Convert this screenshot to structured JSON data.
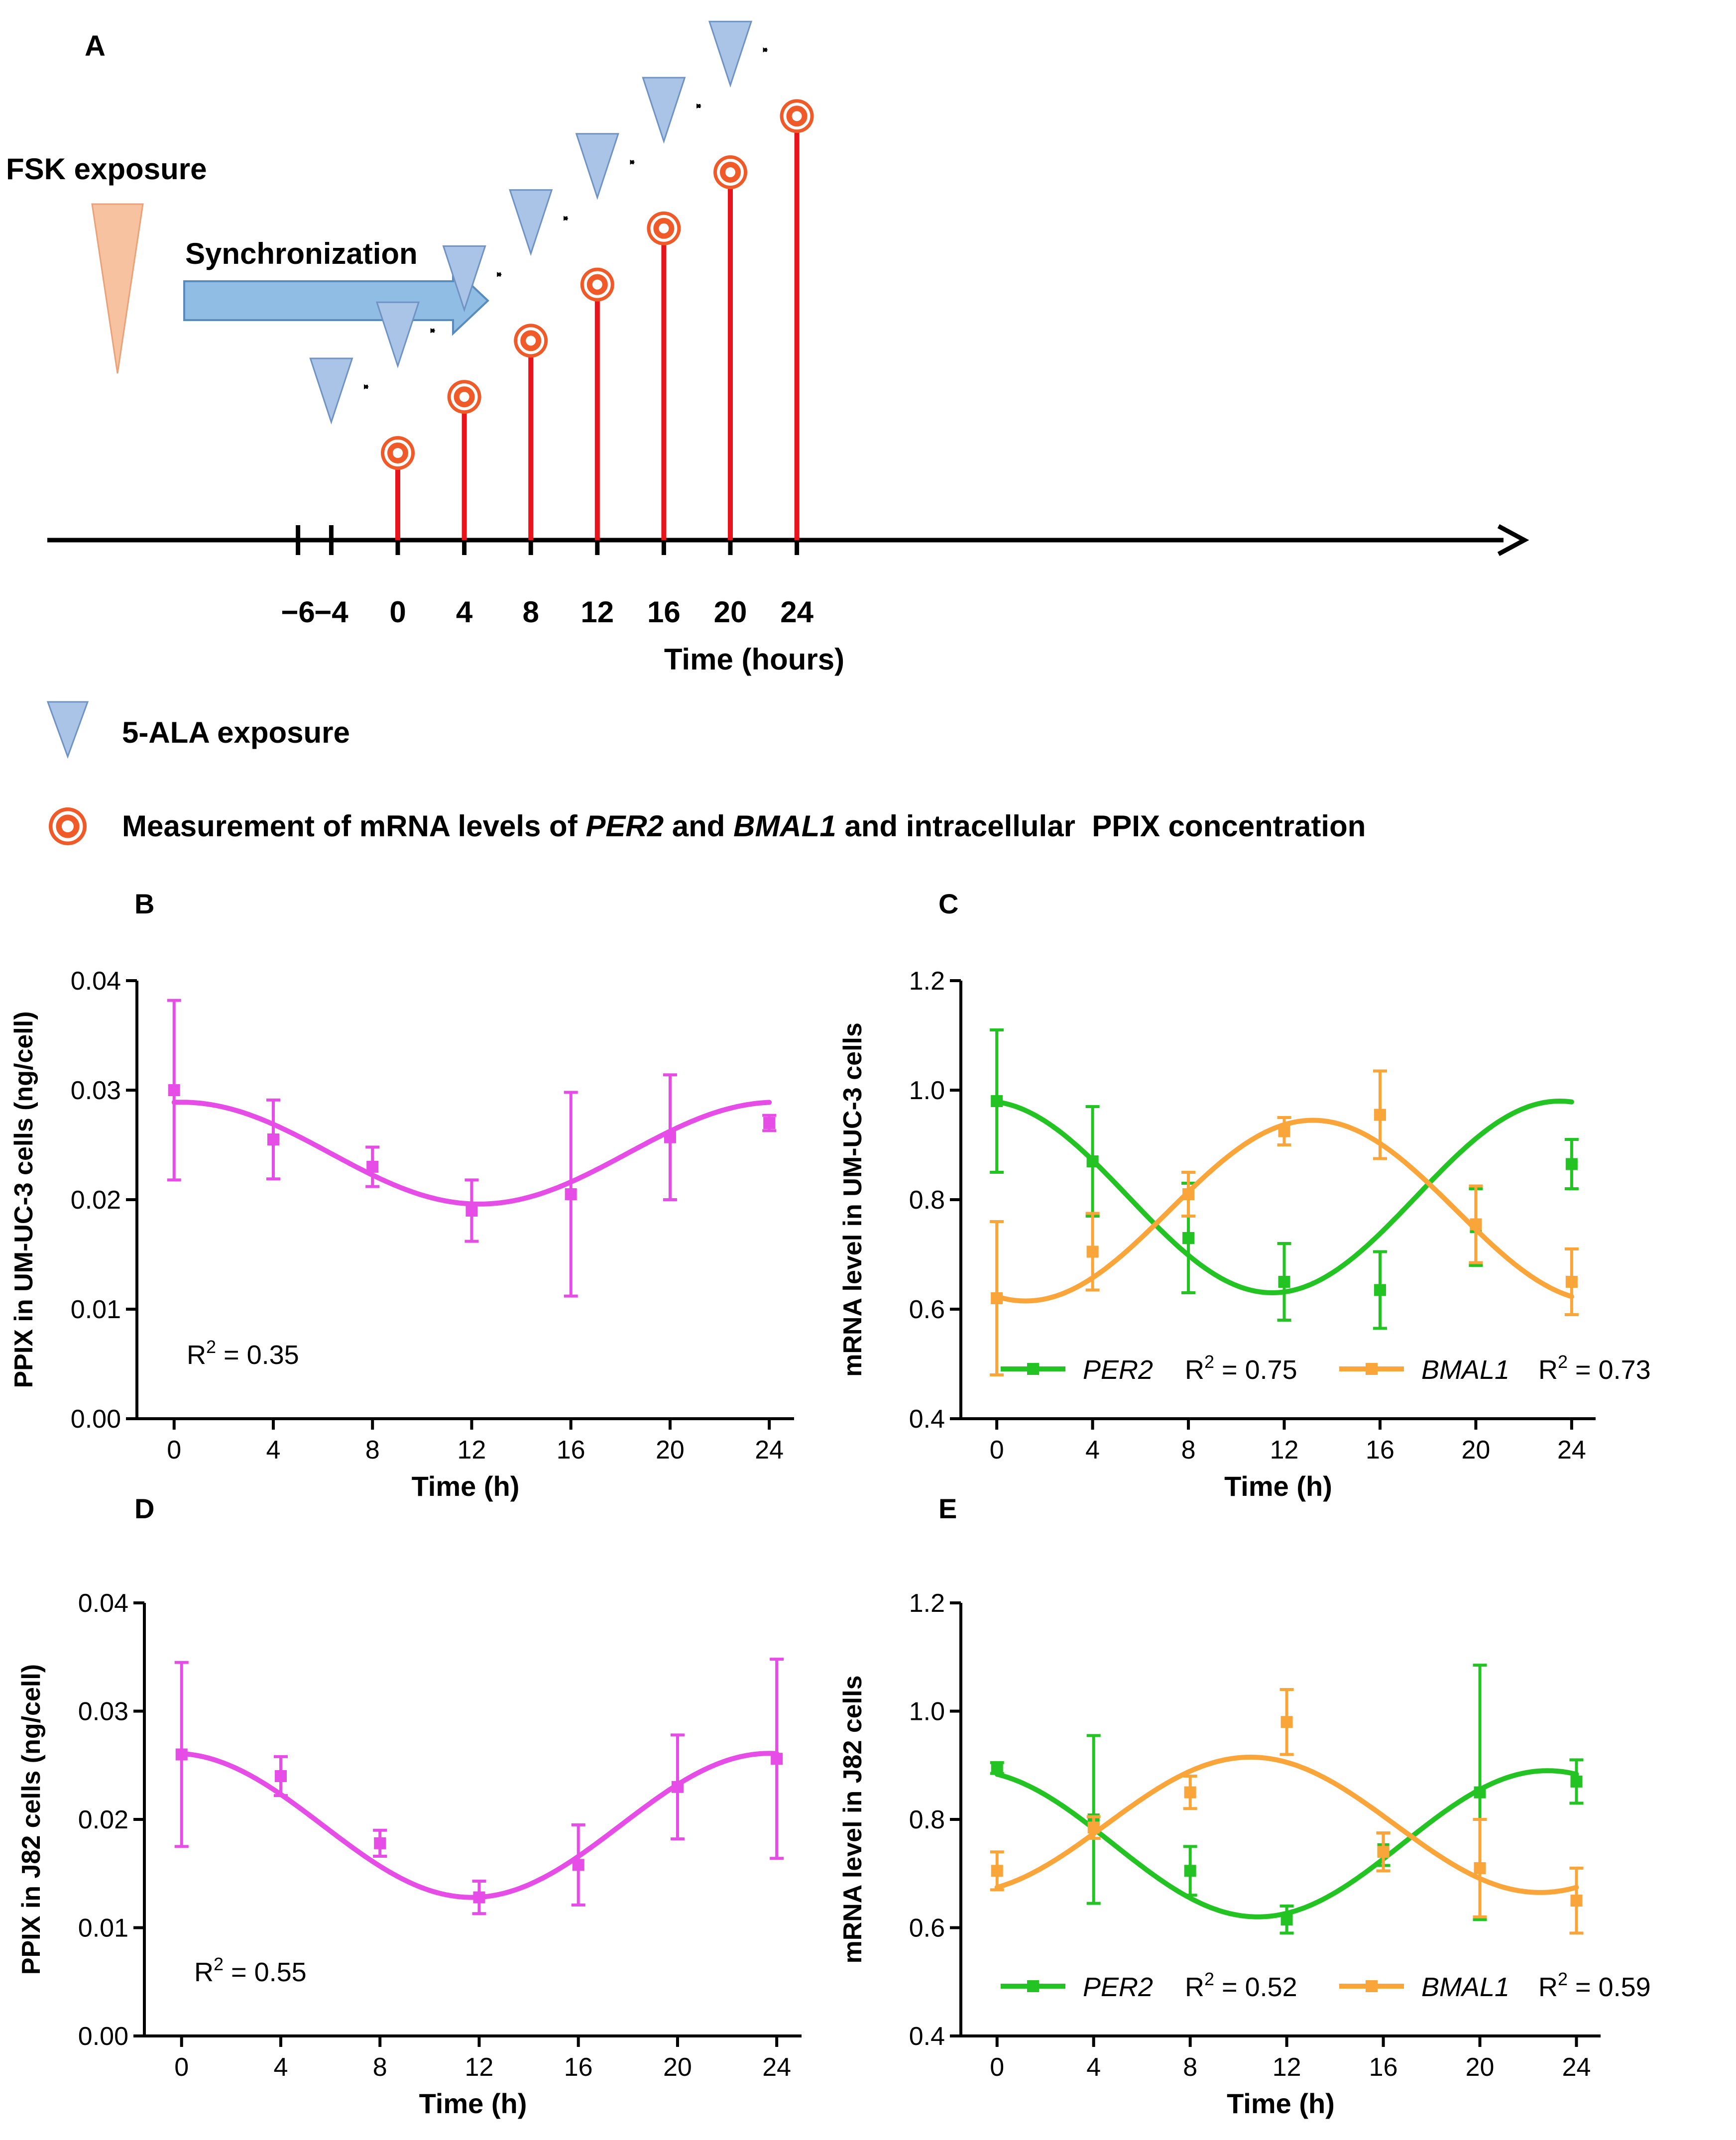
{
  "panel_a": {
    "label": "A",
    "fsk_label": "FSK exposure",
    "sync_label": "Synchronization",
    "axis_title": "Time (hours)",
    "ticks": [
      "−6",
      "−4",
      "0",
      "4",
      "8",
      "12",
      "16",
      "20",
      "24"
    ],
    "tick_values": [
      -6,
      -4,
      0,
      4,
      8,
      12,
      16,
      20,
      24
    ],
    "measure_times": [
      0,
      4,
      8,
      12,
      16,
      20,
      24
    ],
    "ala_times": [
      -4,
      0,
      4,
      8,
      12,
      16,
      20
    ],
    "legend_ala": "5-ALA exposure",
    "legend_measure_parts": [
      "Measurement of mRNA levels of ",
      "PER2",
      " and ",
      "BMAL1",
      " and intracellular  PPIX concentration"
    ],
    "colors": {
      "fsk": "#f7c29f",
      "ala": "#a9c4e6",
      "stem": "#e8131b",
      "marker": "#f05a28",
      "sync": "#8fbde3"
    }
  },
  "chart_data": [
    {
      "panel": "B",
      "type": "line",
      "title": "",
      "xlabel": "Time (h)",
      "ylabel": "PPIX in UM-UC-3 cells (ng/cell)",
      "x": [
        0,
        4,
        8,
        12,
        16,
        20,
        24
      ],
      "xticks": [
        "0",
        "4",
        "8",
        "12",
        "16",
        "20",
        "24"
      ],
      "yticks": [
        "0.00",
        "0.01",
        "0.02",
        "0.03",
        "0.04"
      ],
      "xlim": [
        -1.5,
        25
      ],
      "ylim": [
        0,
        0.04
      ],
      "series": [
        {
          "name": "PPIX",
          "color": "#e64ce6",
          "values": [
            0.03,
            0.0255,
            0.023,
            0.019,
            0.0205,
            0.0257,
            0.027
          ],
          "errors": [
            0.0082,
            0.0036,
            0.0018,
            0.0028,
            0.0093,
            0.0057,
            0.0007
          ],
          "fit": {
            "mean": 0.02425,
            "amp": 0.00465,
            "peak_h": 0.3
          }
        }
      ],
      "annotation": "= 0.35",
      "annotation_prefix": "R",
      "annotation_sup": "2"
    },
    {
      "panel": "C",
      "type": "line",
      "title": "",
      "xlabel": "Time (h)",
      "ylabel": "mRNA level in UM-UC-3 cells",
      "x": [
        0,
        4,
        8,
        12,
        16,
        20,
        24
      ],
      "xticks": [
        "0",
        "4",
        "8",
        "12",
        "16",
        "20",
        "24"
      ],
      "yticks": [
        "0.4",
        "0.6",
        "0.8",
        "1.0",
        "1.2"
      ],
      "xlim": [
        -1.5,
        25
      ],
      "ylim": [
        0.4,
        1.2
      ],
      "series": [
        {
          "name": "PER2",
          "r2": "R² = 0.75",
          "color": "#22c322",
          "values": [
            0.98,
            0.87,
            0.73,
            0.65,
            0.635,
            0.75,
            0.865
          ],
          "errors": [
            0.13,
            0.1,
            0.1,
            0.07,
            0.07,
            0.07,
            0.045
          ],
          "fit": {
            "mean": 0.805,
            "amp": 0.175,
            "peak_h": -0.5
          }
        },
        {
          "name": "BMAL1",
          "r2": "R² = 0.73",
          "color": "#f9a53a",
          "values": [
            0.62,
            0.705,
            0.81,
            0.925,
            0.955,
            0.755,
            0.65
          ],
          "errors": [
            0.14,
            0.07,
            0.04,
            0.025,
            0.08,
            0.07,
            0.06
          ],
          "fit": {
            "mean": 0.78,
            "amp": 0.165,
            "peak_h": 13.2
          }
        }
      ]
    },
    {
      "panel": "D",
      "type": "line",
      "title": "",
      "xlabel": "Time (h)",
      "ylabel": "PPIX in J82 cells (ng/cell)",
      "x": [
        0,
        4,
        8,
        12,
        16,
        20,
        24
      ],
      "xticks": [
        "0",
        "4",
        "8",
        "12",
        "16",
        "20",
        "24"
      ],
      "yticks": [
        "0.00",
        "0.01",
        "0.02",
        "0.03",
        "0.04"
      ],
      "xlim": [
        -1.5,
        25
      ],
      "ylim": [
        0,
        0.04
      ],
      "series": [
        {
          "name": "PPIX",
          "color": "#e64ce6",
          "values": [
            0.026,
            0.024,
            0.0178,
            0.0128,
            0.0158,
            0.023,
            0.0256
          ],
          "errors": [
            0.0085,
            0.0018,
            0.0012,
            0.0015,
            0.0037,
            0.0048,
            0.0092
          ],
          "fit": {
            "mean": 0.01945,
            "amp": 0.00665,
            "peak_h": 23.7
          }
        }
      ],
      "annotation": "= 0.55",
      "annotation_prefix": "R",
      "annotation_sup": "2"
    },
    {
      "panel": "E",
      "type": "line",
      "title": "",
      "xlabel": "Time (h)",
      "ylabel": "mRNA level in J82 cells",
      "x": [
        0,
        4,
        8,
        12,
        16,
        20,
        24
      ],
      "xticks": [
        "0",
        "4",
        "8",
        "12",
        "16",
        "20",
        "24"
      ],
      "yticks": [
        "0.4",
        "0.6",
        "0.8",
        "1.0",
        "1.2"
      ],
      "xlim": [
        -1.5,
        25
      ],
      "ylim": [
        0.4,
        1.2
      ],
      "series": [
        {
          "name": "PER2",
          "r2": "R² = 0.52",
          "color": "#22c322",
          "values": [
            0.895,
            0.8,
            0.705,
            0.615,
            0.745,
            0.85,
            0.87
          ],
          "errors": [
            0.01,
            0.155,
            0.045,
            0.025,
            0.03,
            0.235,
            0.04
          ],
          "fit": {
            "mean": 0.755,
            "amp": 0.135,
            "peak_h": 22.8
          }
        },
        {
          "name": "BMAL1",
          "r2": "R² = 0.59",
          "color": "#f9a53a",
          "values": [
            0.705,
            0.785,
            0.85,
            0.98,
            0.74,
            0.71,
            0.65
          ],
          "errors": [
            0.035,
            0.02,
            0.03,
            0.06,
            0.035,
            0.09,
            0.06
          ],
          "fit": {
            "mean": 0.79,
            "amp": 0.125,
            "peak_h": 10.5
          }
        }
      ]
    }
  ]
}
